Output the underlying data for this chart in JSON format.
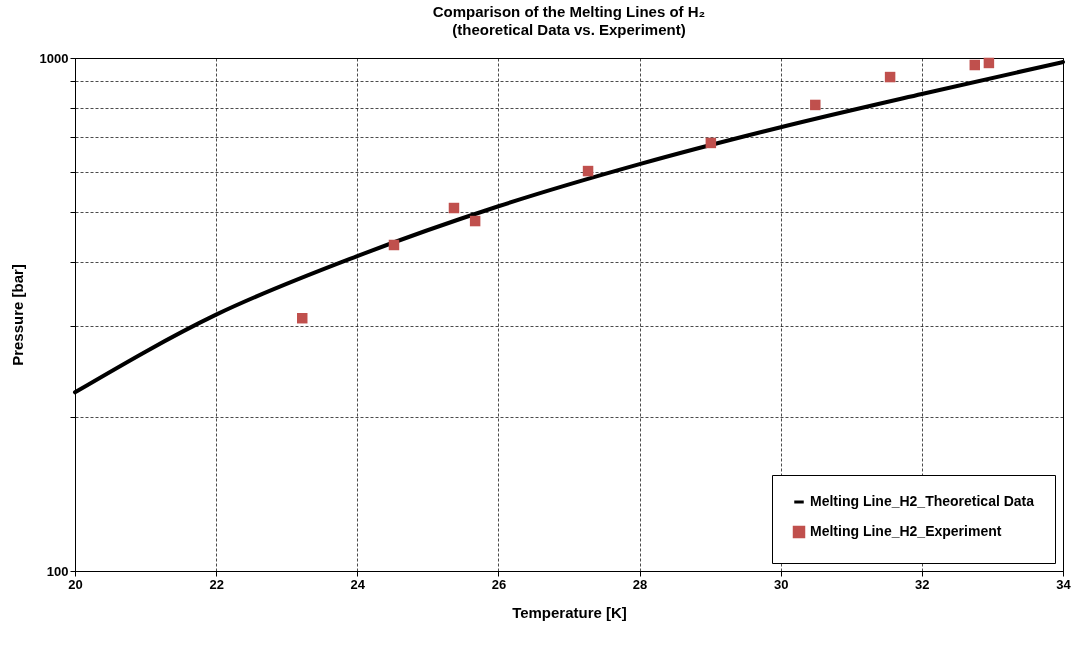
{
  "chart_data": {
    "type": "line",
    "title": "Comparison of the Melting Lines of H₂",
    "subtitle": "(theoretical Data vs. Experiment)",
    "xlabel": "Temperature [K]",
    "ylabel": "Pressure [bar]",
    "series": [
      {
        "name": "Melting Line_H2_Theoretical Data",
        "color": "#000000",
        "marker": "none",
        "x": [
          20,
          22,
          24,
          26,
          28,
          30,
          32,
          34
        ],
        "values": [
          223,
          316,
          411,
          514,
          621,
          733,
          851,
          982
        ]
      },
      {
        "name": "Melting Line_H2_Experiment",
        "type": "scatter",
        "color": "#c0504d",
        "marker": "square",
        "x": [
          23.22,
          24.52,
          25.37,
          25.67,
          27.27,
          29.01,
          30.49,
          31.55,
          32.75,
          32.95
        ],
        "values": [
          311,
          432,
          510,
          481,
          602,
          683,
          810,
          918,
          969,
          978
        ]
      }
    ],
    "xlim": [
      20,
      34
    ],
    "xticks": [
      20,
      22,
      24,
      26,
      28,
      30,
      32,
      34
    ],
    "ylim": [
      100,
      1000
    ],
    "yticks": [
      100,
      {
        "value": 200,
        "label": null
      },
      {
        "value": 300,
        "label": null
      },
      {
        "value": 400,
        "label": null
      },
      {
        "value": 500,
        "label": null
      },
      {
        "value": 600,
        "label": null
      },
      {
        "value": 700,
        "label": null
      },
      {
        "value": 800,
        "label": null
      },
      {
        "value": 900,
        "label": null
      },
      1000
    ],
    "log": "y",
    "grid": true,
    "legend": "bottom right"
  }
}
